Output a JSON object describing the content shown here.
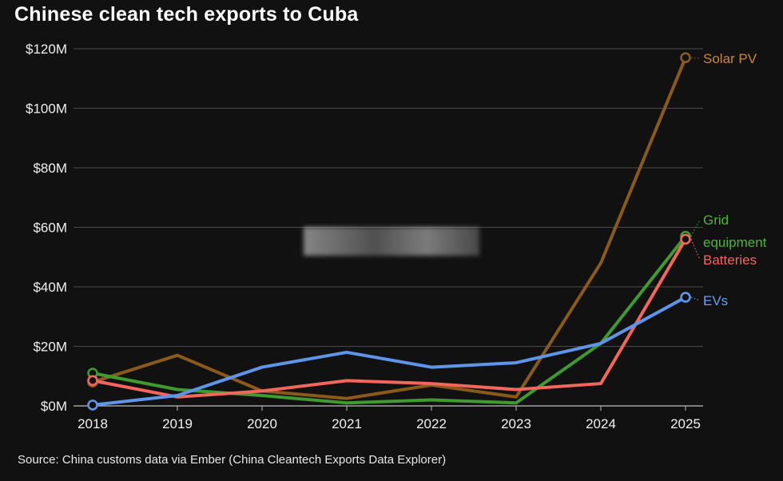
{
  "header": {
    "title": "Chinese clean tech exports to Cuba"
  },
  "footer": {
    "source": "Source: China customs data via Ember (China Cleantech Exports Data Explorer)"
  },
  "chart_data": {
    "type": "line",
    "title": "Chinese clean tech exports to Cuba",
    "xlabel": "",
    "ylabel": "",
    "x": [
      "2018",
      "2019",
      "2020",
      "2021",
      "2022",
      "2023",
      "2024",
      "2025"
    ],
    "ylim": [
      0,
      120
    ],
    "yticks": [
      0,
      20,
      40,
      60,
      80,
      100,
      120
    ],
    "ytick_labels": [
      "$0M",
      "$20M",
      "$40M",
      "$60M",
      "$80M",
      "$100M",
      "$120M"
    ],
    "grid": true,
    "series": [
      {
        "name": "Solar PV",
        "label_lines": [
          "Solar PV"
        ],
        "color": "#8a5a1a",
        "label_color": "#c9873a",
        "values": [
          8,
          17,
          5,
          2.5,
          7,
          3,
          48,
          117
        ]
      },
      {
        "name": "Grid equipment",
        "label_lines": [
          "Grid",
          "equipment"
        ],
        "color": "#3f9b2f",
        "label_color": "#4db43a",
        "values": [
          11,
          5.5,
          3.5,
          1,
          2,
          1,
          21,
          57
        ]
      },
      {
        "name": "Batteries",
        "label_lines": [
          "Batteries"
        ],
        "color": "#f2665c",
        "label_color": "#f2665c",
        "values": [
          8.5,
          3,
          5,
          8.5,
          7.5,
          5.5,
          7.5,
          56
        ]
      },
      {
        "name": "EVs",
        "label_lines": [
          "EVs"
        ],
        "color": "#5f95e8",
        "label_color": "#6aa0f0",
        "values": [
          0.3,
          3.5,
          13,
          18,
          13,
          14.5,
          21,
          36.5
        ]
      }
    ],
    "end_markers": "open circles at first and last points"
  }
}
